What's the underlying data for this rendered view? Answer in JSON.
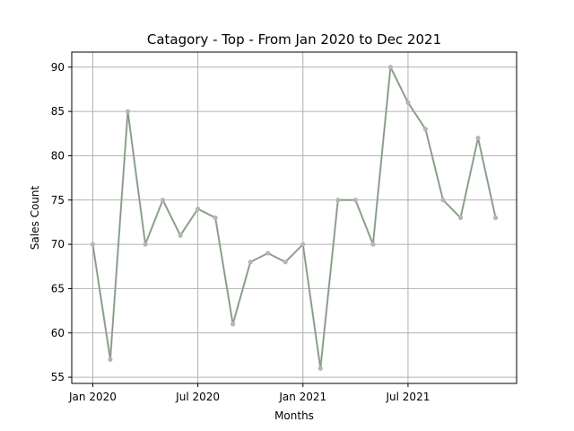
{
  "chart_data": {
    "type": "line",
    "title": "Catagory - Top - From Jan 2020 to Dec 2021",
    "xlabel": "Months",
    "ylabel": "Sales Count",
    "x": [
      "2020-01",
      "2020-02",
      "2020-03",
      "2020-04",
      "2020-05",
      "2020-06",
      "2020-07",
      "2020-08",
      "2020-09",
      "2020-10",
      "2020-11",
      "2020-12",
      "2021-01",
      "2021-02",
      "2021-03",
      "2021-04",
      "2021-05",
      "2021-06",
      "2021-07",
      "2021-08",
      "2021-09",
      "2021-10",
      "2021-11",
      "2021-12"
    ],
    "values": [
      70,
      57,
      85,
      70,
      75,
      71,
      74,
      73,
      61,
      68,
      69,
      68,
      70,
      56,
      75,
      75,
      70,
      90,
      86,
      83,
      75,
      73,
      82,
      73
    ],
    "xticks": [
      {
        "index": 0,
        "label": "Jan 2020"
      },
      {
        "index": 6,
        "label": "Jul 2020"
      },
      {
        "index": 12,
        "label": "Jan 2021"
      },
      {
        "index": 18,
        "label": "Jul 2021"
      }
    ],
    "yticks": [
      55,
      60,
      65,
      70,
      75,
      80,
      85,
      90
    ],
    "ylim": [
      54.3,
      91.7
    ],
    "xlim": [
      -1.2,
      24.2
    ],
    "grid": true,
    "colors": {
      "line_outer": "#9dbf9a",
      "line_inner": "#8c8c8c",
      "marker": "#b5b5b5"
    }
  }
}
